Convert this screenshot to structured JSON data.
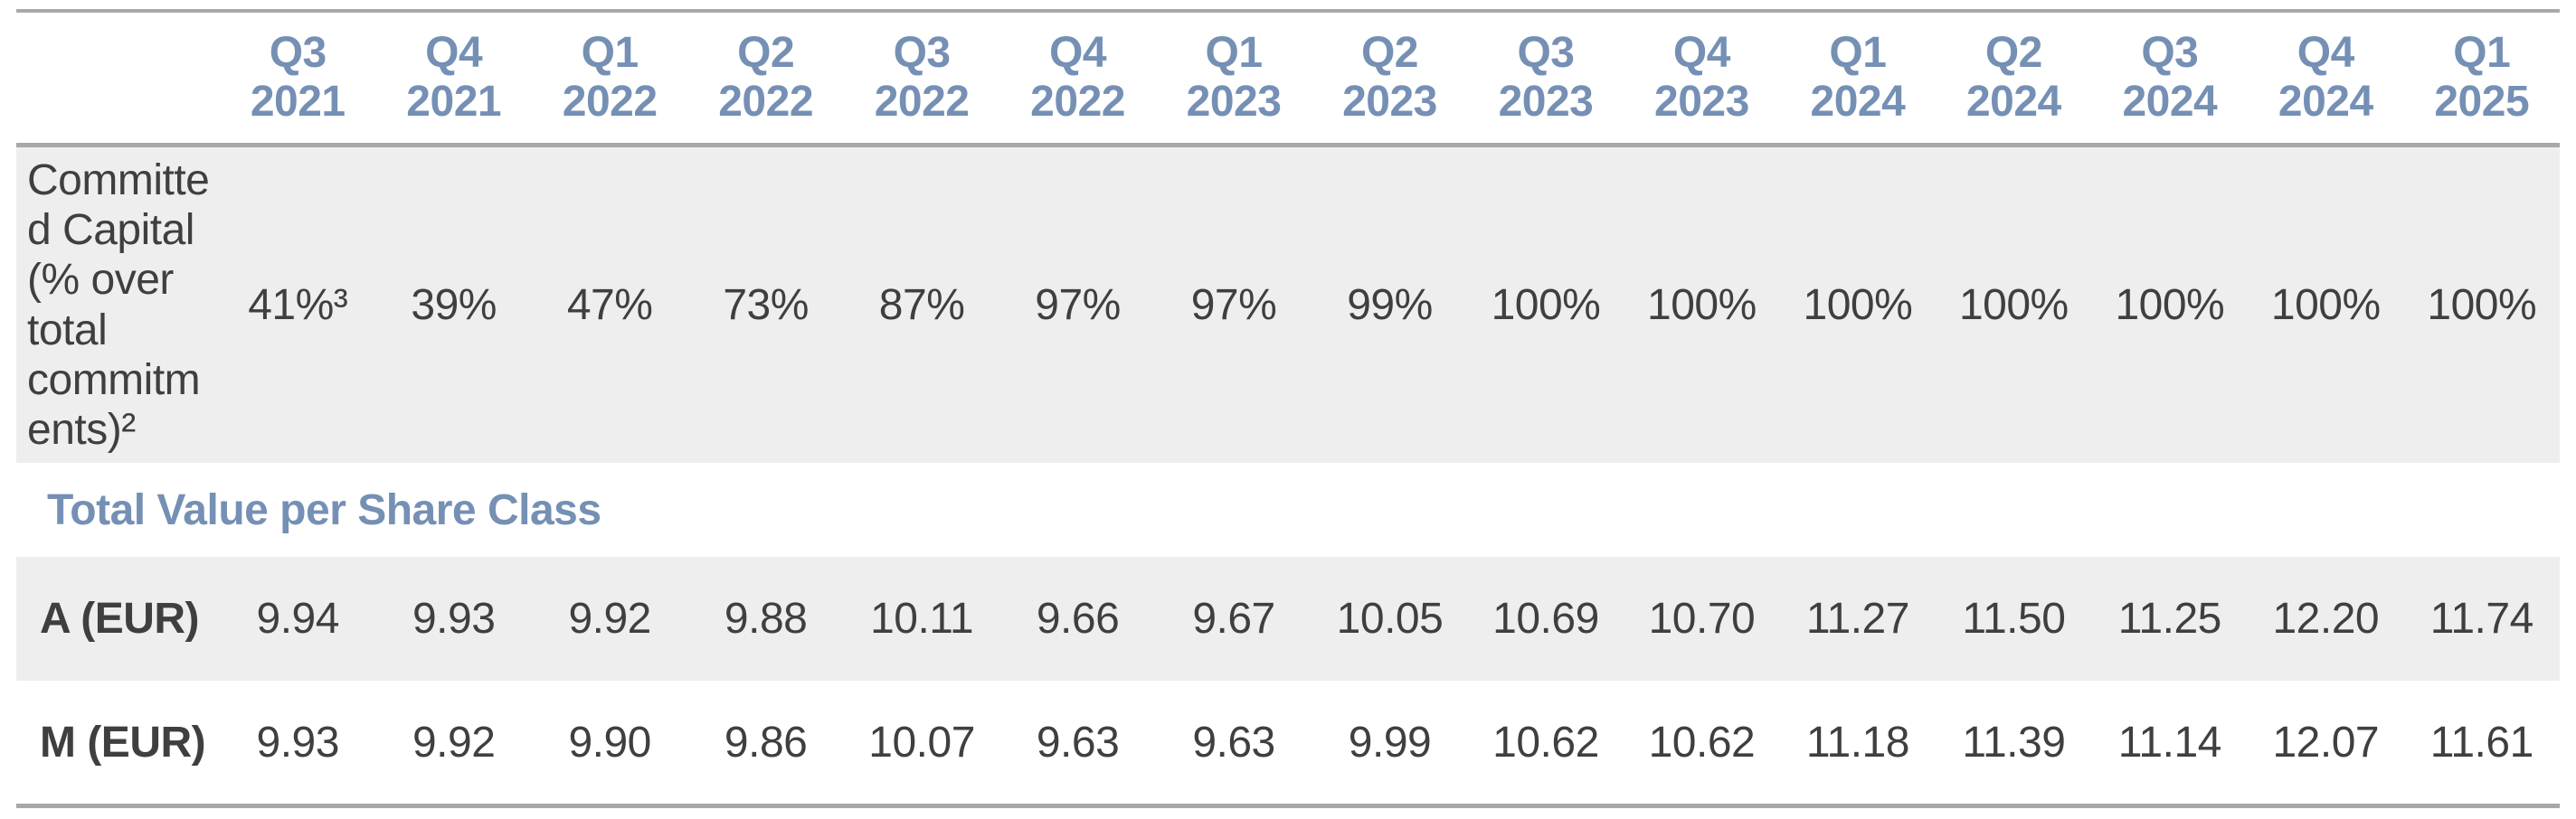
{
  "colors": {
    "accent_blue": "#7590b4",
    "row_stripe_gray": "#eeeeee",
    "border_gray": "#a8a8a8",
    "text_dark": "#3f3f3f"
  },
  "table": {
    "quarter_headers": [
      "Q3\n2021",
      "Q4\n2021",
      "Q1\n2022",
      "Q2\n2022",
      "Q3\n2022",
      "Q4\n2022",
      "Q1\n2023",
      "Q2\n2023",
      "Q3\n2023",
      "Q4\n2023",
      "Q1\n2024",
      "Q2\n2024",
      "Q3\n2024",
      "Q4\n2024",
      "Q1\n2025"
    ],
    "committed_capital": {
      "label": "Committed Capital (% over total commitments)²",
      "values": [
        "41%³",
        "39%",
        "47%",
        "73%",
        "87%",
        "97%",
        "97%",
        "99%",
        "100%",
        "100%",
        "100%",
        "100%",
        "100%",
        "100%",
        "100%"
      ]
    },
    "section_header": "Total Value per Share Class",
    "share_classes": [
      {
        "label": "A (EUR)",
        "values": [
          "9.94",
          "9.93",
          "9.92",
          "9.88",
          "10.11",
          "9.66",
          "9.67",
          "10.05",
          "10.69",
          "10.70",
          "11.27",
          "11.50",
          "11.25",
          "12.20",
          "11.74"
        ]
      },
      {
        "label": "M (EUR)",
        "values": [
          "9.93",
          "9.92",
          "9.90",
          "9.86",
          "10.07",
          "9.63",
          "9.63",
          "9.99",
          "10.62",
          "10.62",
          "11.18",
          "11.39",
          "11.14",
          "12.07",
          "11.61"
        ]
      }
    ]
  },
  "chart_data": {
    "type": "table",
    "columns": [
      "Q3 2021",
      "Q4 2021",
      "Q1 2022",
      "Q2 2022",
      "Q3 2022",
      "Q4 2022",
      "Q1 2023",
      "Q2 2023",
      "Q3 2023",
      "Q4 2023",
      "Q1 2024",
      "Q2 2024",
      "Q3 2024",
      "Q4 2024",
      "Q1 2025"
    ],
    "rows": [
      {
        "label": "Committed Capital (% over total commitments)²",
        "values": [
          "41%³",
          "39%",
          "47%",
          "73%",
          "87%",
          "97%",
          "97%",
          "99%",
          "100%",
          "100%",
          "100%",
          "100%",
          "100%",
          "100%",
          "100%"
        ]
      },
      {
        "label": "Total Value per Share Class",
        "values": []
      },
      {
        "label": "A (EUR)",
        "values": [
          9.94,
          9.93,
          9.92,
          9.88,
          10.11,
          9.66,
          9.67,
          10.05,
          10.69,
          10.7,
          11.27,
          11.5,
          11.25,
          12.2,
          11.74
        ]
      },
      {
        "label": "M (EUR)",
        "values": [
          9.93,
          9.92,
          9.9,
          9.86,
          10.07,
          9.63,
          9.63,
          9.99,
          10.62,
          10.62,
          11.18,
          11.39,
          11.14,
          12.07,
          11.61
        ]
      }
    ]
  }
}
